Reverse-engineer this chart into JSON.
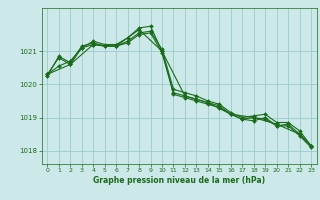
{
  "title": "Graphe pression niveau de la mer (hPa)",
  "background_color": "#cce8e8",
  "grid_color": "#99cccc",
  "line_color": "#1a6b1a",
  "xlim": [
    -0.5,
    23.5
  ],
  "ylim": [
    1017.6,
    1022.3
  ],
  "yticks": [
    1018,
    1019,
    1020,
    1021
  ],
  "xticks": [
    0,
    1,
    2,
    3,
    4,
    5,
    6,
    7,
    8,
    9,
    10,
    11,
    12,
    13,
    14,
    15,
    16,
    17,
    18,
    19,
    20,
    21,
    22,
    23
  ],
  "series": [
    {
      "x": [
        0,
        1,
        2,
        3,
        4,
        5,
        6,
        7,
        8,
        9,
        10,
        11,
        12,
        13,
        14,
        15,
        16,
        17,
        18,
        19,
        20,
        21,
        22,
        23
      ],
      "y": [
        1020.3,
        1020.55,
        1020.7,
        1021.1,
        1021.2,
        1021.15,
        1021.15,
        1021.3,
        1021.55,
        1021.6,
        1021.05,
        1019.85,
        1019.75,
        1019.65,
        1019.5,
        1019.4,
        1019.15,
        1019.0,
        1019.05,
        1019.1,
        1018.85,
        1018.85,
        1018.6,
        1018.15
      ]
    },
    {
      "x": [
        0,
        1,
        2,
        3,
        4,
        5,
        6,
        7,
        8,
        9,
        10,
        11,
        12,
        13,
        14,
        15,
        16,
        17,
        18,
        19,
        20,
        21,
        22,
        23
      ],
      "y": [
        1020.3,
        1020.8,
        1020.6,
        1021.1,
        1021.3,
        1021.2,
        1021.2,
        1021.4,
        1021.7,
        1021.75,
        1021.0,
        1019.7,
        1019.6,
        1019.5,
        1019.4,
        1019.3,
        1019.1,
        1018.95,
        1018.9,
        1019.0,
        1018.75,
        1018.8,
        1018.5,
        1018.15
      ]
    },
    {
      "x": [
        0,
        1,
        2,
        3,
        4,
        5,
        6,
        7,
        8,
        9,
        10,
        11,
        12,
        13,
        14,
        15,
        16,
        17,
        18,
        19,
        20,
        21,
        22,
        23
      ],
      "y": [
        1020.25,
        1020.85,
        1020.65,
        1021.15,
        1021.25,
        1021.15,
        1021.15,
        1021.25,
        1021.5,
        1021.55,
        1020.95,
        1019.75,
        1019.65,
        1019.55,
        1019.45,
        1019.35,
        1019.1,
        1018.95,
        1019.0,
        1018.95,
        1018.75,
        1018.75,
        1018.45,
        1018.1
      ]
    },
    {
      "x": [
        0,
        2,
        4,
        6,
        8,
        10,
        12,
        14,
        16,
        18,
        20,
        22,
        23
      ],
      "y": [
        1020.3,
        1020.6,
        1021.2,
        1021.15,
        1021.65,
        1021.0,
        1019.65,
        1019.45,
        1019.1,
        1019.0,
        1018.8,
        1018.5,
        1018.15
      ]
    }
  ]
}
